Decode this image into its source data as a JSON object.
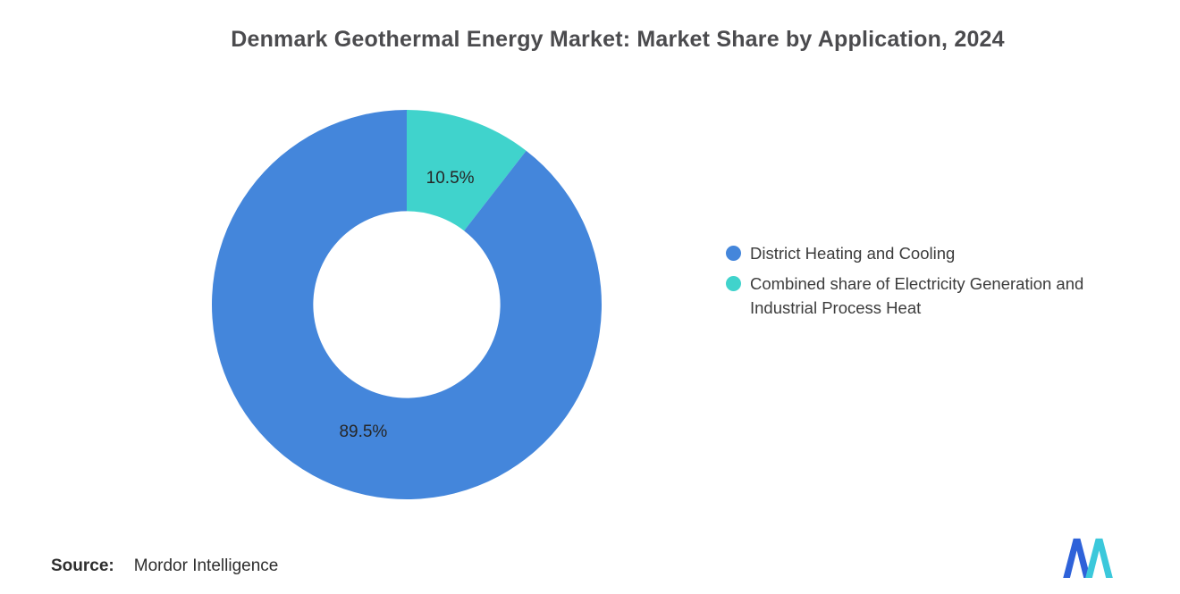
{
  "chart_data": {
    "type": "pie",
    "variant": "donut",
    "title": "Denmark Geothermal Energy Market: Market Share by Application, 2024",
    "slices": [
      {
        "label": "District Heating and Cooling",
        "value": 89.5,
        "value_label": "89.5%",
        "color": "#4486DB"
      },
      {
        "label": "Combined share of Electricity Generation and Industrial Process Heat",
        "value": 10.5,
        "value_label": "10.5%",
        "color": "#40D3CC"
      }
    ],
    "legend_position": "right",
    "render": {
      "start_angle_deg": -90,
      "draw_order": [
        1,
        0
      ],
      "inner_radius_ratio": 0.48,
      "label_color": "#262626"
    }
  },
  "source": {
    "label": "Source:",
    "value": "Mordor Intelligence"
  },
  "logo": {
    "name": "mordor-intelligence-logo",
    "colors": {
      "left": "#2E62D9",
      "right": "#3BC8DB"
    }
  }
}
